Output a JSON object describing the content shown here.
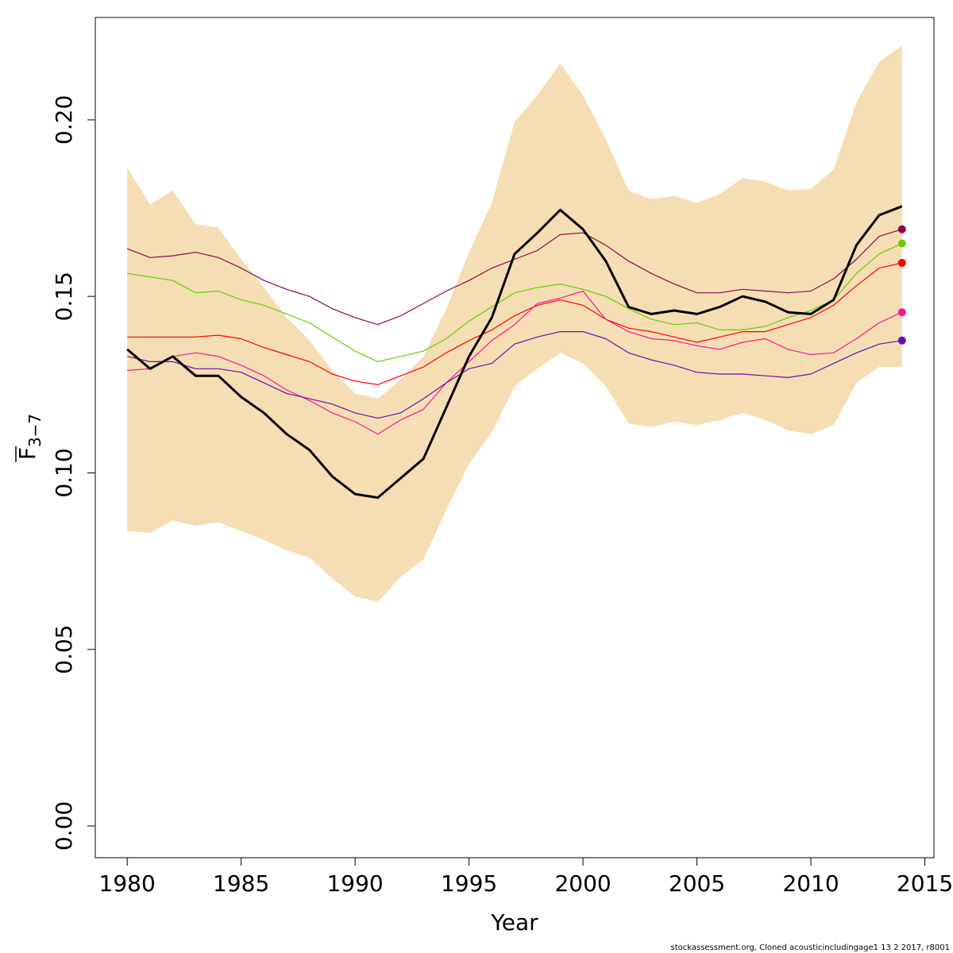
{
  "chart_data": {
    "type": "line",
    "xlabel": "Year",
    "ylabel_main": "F",
    "ylabel_sub": "3−7",
    "xlim": [
      1978.6,
      2015.4
    ],
    "ylim": [
      -0.009,
      0.229
    ],
    "x_ticks": [
      1980,
      1985,
      1990,
      1995,
      2000,
      2005,
      2010,
      2015
    ],
    "y_ticks": [
      0.0,
      0.05,
      0.1,
      0.15,
      0.2
    ],
    "y_tick_labels": [
      "0.00",
      "0.05",
      "0.10",
      "0.15",
      "0.20"
    ],
    "grid": false,
    "legend": "none",
    "band_color": "#f5deb3",
    "years": [
      1980,
      1981,
      1982,
      1983,
      1984,
      1985,
      1986,
      1987,
      1988,
      1989,
      1990,
      1991,
      1992,
      1993,
      1994,
      1995,
      1996,
      1997,
      1998,
      1999,
      2000,
      2001,
      2002,
      2003,
      2004,
      2005,
      2006,
      2007,
      2008,
      2009,
      2010,
      2011,
      2012,
      2013,
      2014
    ],
    "band_upper": [
      0.1865,
      0.176,
      0.18,
      0.1705,
      0.1695,
      0.1605,
      0.1525,
      0.144,
      0.1375,
      0.129,
      0.1225,
      0.121,
      0.1265,
      0.133,
      0.1465,
      0.1625,
      0.1765,
      0.1995,
      0.207,
      0.216,
      0.207,
      0.1945,
      0.18,
      0.1775,
      0.1785,
      0.1765,
      0.179,
      0.1835,
      0.1825,
      0.18,
      0.1805,
      0.186,
      0.205,
      0.2165,
      0.221
    ],
    "band_lower": [
      0.0835,
      0.083,
      0.0865,
      0.085,
      0.086,
      0.0835,
      0.081,
      0.078,
      0.076,
      0.07,
      0.065,
      0.0635,
      0.0705,
      0.0755,
      0.0895,
      0.1025,
      0.1115,
      0.1245,
      0.1295,
      0.134,
      0.131,
      0.1245,
      0.114,
      0.113,
      0.1145,
      0.1135,
      0.115,
      0.117,
      0.115,
      0.112,
      0.111,
      0.1135,
      0.1255,
      0.13,
      0.13
    ],
    "series": [
      {
        "color": "#000000",
        "width": 3,
        "end_marker": false,
        "values": [
          0.135,
          0.1295,
          0.133,
          0.1275,
          0.1275,
          0.1215,
          0.117,
          0.111,
          0.1065,
          0.099,
          0.094,
          0.093,
          0.0985,
          0.104,
          0.1185,
          0.133,
          0.144,
          0.162,
          0.168,
          0.1745,
          0.169,
          0.16,
          0.147,
          0.145,
          0.146,
          0.145,
          0.147,
          0.15,
          0.1485,
          0.1455,
          0.145,
          0.149,
          0.1645,
          0.173,
          0.1755
        ]
      },
      {
        "color": "#8b0a50",
        "width": 1.2,
        "end_marker": true,
        "values": [
          0.1635,
          0.161,
          0.1615,
          0.1625,
          0.161,
          0.158,
          0.1545,
          0.152,
          0.15,
          0.1465,
          0.144,
          0.142,
          0.1445,
          0.148,
          0.1515,
          0.1545,
          0.158,
          0.1605,
          0.163,
          0.1675,
          0.168,
          0.1645,
          0.16,
          0.1565,
          0.1535,
          0.151,
          0.151,
          0.152,
          0.1515,
          0.151,
          0.1515,
          0.155,
          0.1605,
          0.167,
          0.169
        ]
      },
      {
        "color": "#66cd00",
        "width": 1.2,
        "end_marker": true,
        "values": [
          0.1565,
          0.1555,
          0.1545,
          0.151,
          0.1515,
          0.149,
          0.1475,
          0.145,
          0.1425,
          0.1385,
          0.1345,
          0.1315,
          0.133,
          0.1345,
          0.138,
          0.143,
          0.147,
          0.151,
          0.1525,
          0.1535,
          0.152,
          0.15,
          0.1465,
          0.1435,
          0.142,
          0.1425,
          0.1405,
          0.1405,
          0.1415,
          0.144,
          0.146,
          0.149,
          0.1565,
          0.162,
          0.165
        ]
      },
      {
        "color": "#ff0000",
        "width": 1.2,
        "end_marker": true,
        "values": [
          0.1385,
          0.1385,
          0.1385,
          0.1385,
          0.139,
          0.138,
          0.1355,
          0.1335,
          0.1315,
          0.128,
          0.126,
          0.125,
          0.1275,
          0.13,
          0.134,
          0.1375,
          0.1405,
          0.1445,
          0.1475,
          0.149,
          0.1475,
          0.1435,
          0.141,
          0.14,
          0.1385,
          0.137,
          0.1385,
          0.14,
          0.14,
          0.142,
          0.144,
          0.1475,
          0.153,
          0.158,
          0.1595
        ]
      },
      {
        "color": "#ff1493",
        "width": 1.2,
        "end_marker": true,
        "values": [
          0.129,
          0.1295,
          0.133,
          0.134,
          0.133,
          0.1305,
          0.1275,
          0.1235,
          0.1205,
          0.117,
          0.1145,
          0.111,
          0.115,
          0.118,
          0.1255,
          0.1315,
          0.1375,
          0.142,
          0.148,
          0.1495,
          0.1515,
          0.1435,
          0.14,
          0.138,
          0.1375,
          0.136,
          0.135,
          0.137,
          0.138,
          0.135,
          0.1335,
          0.134,
          0.138,
          0.1425,
          0.1455
        ]
      },
      {
        "color": "#6a0dad",
        "width": 1.2,
        "end_marker": true,
        "values": [
          0.133,
          0.1315,
          0.1315,
          0.1295,
          0.1295,
          0.1285,
          0.1255,
          0.1225,
          0.121,
          0.1195,
          0.117,
          0.1155,
          0.117,
          0.121,
          0.1255,
          0.1295,
          0.131,
          0.1365,
          0.1385,
          0.14,
          0.14,
          0.138,
          0.134,
          0.132,
          0.1305,
          0.1285,
          0.128,
          0.128,
          0.1275,
          0.127,
          0.128,
          0.131,
          0.134,
          0.1365,
          0.1375
        ]
      }
    ]
  },
  "footer": "stockassessment.org, Cloned  acousticincludingage1  13  2  2017, r8001"
}
